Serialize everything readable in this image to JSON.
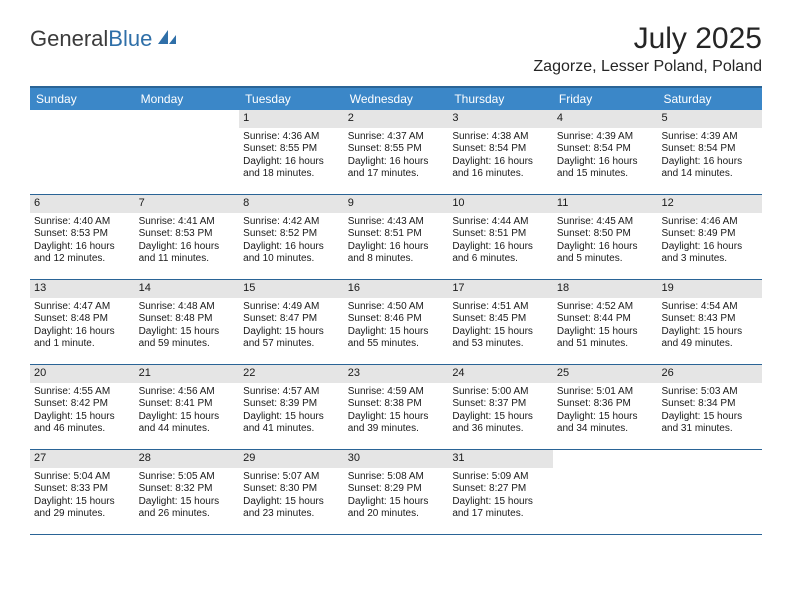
{
  "logo": {
    "text1": "General",
    "text2": "Blue"
  },
  "title": "July 2025",
  "location": "Zagorze, Lesser Poland, Poland",
  "colors": {
    "header_bar": "#3b87c8",
    "border": "#2a6496",
    "daynum_bg": "#e5e5e5",
    "text": "#1a1a1a",
    "logo_gray": "#3b3b3b",
    "logo_blue": "#2f6fa8",
    "background": "#ffffff"
  },
  "weekdays": [
    "Sunday",
    "Monday",
    "Tuesday",
    "Wednesday",
    "Thursday",
    "Friday",
    "Saturday"
  ],
  "font": {
    "family": "Arial",
    "body_size": 10,
    "weekday_size": 12,
    "title_size": 30,
    "location_size": 16
  },
  "weeks": [
    [
      null,
      null,
      {
        "n": "1",
        "sr": "Sunrise: 4:36 AM",
        "ss": "Sunset: 8:55 PM",
        "dl": "Daylight: 16 hours and 18 minutes."
      },
      {
        "n": "2",
        "sr": "Sunrise: 4:37 AM",
        "ss": "Sunset: 8:55 PM",
        "dl": "Daylight: 16 hours and 17 minutes."
      },
      {
        "n": "3",
        "sr": "Sunrise: 4:38 AM",
        "ss": "Sunset: 8:54 PM",
        "dl": "Daylight: 16 hours and 16 minutes."
      },
      {
        "n": "4",
        "sr": "Sunrise: 4:39 AM",
        "ss": "Sunset: 8:54 PM",
        "dl": "Daylight: 16 hours and 15 minutes."
      },
      {
        "n": "5",
        "sr": "Sunrise: 4:39 AM",
        "ss": "Sunset: 8:54 PM",
        "dl": "Daylight: 16 hours and 14 minutes."
      }
    ],
    [
      {
        "n": "6",
        "sr": "Sunrise: 4:40 AM",
        "ss": "Sunset: 8:53 PM",
        "dl": "Daylight: 16 hours and 12 minutes."
      },
      {
        "n": "7",
        "sr": "Sunrise: 4:41 AM",
        "ss": "Sunset: 8:53 PM",
        "dl": "Daylight: 16 hours and 11 minutes."
      },
      {
        "n": "8",
        "sr": "Sunrise: 4:42 AM",
        "ss": "Sunset: 8:52 PM",
        "dl": "Daylight: 16 hours and 10 minutes."
      },
      {
        "n": "9",
        "sr": "Sunrise: 4:43 AM",
        "ss": "Sunset: 8:51 PM",
        "dl": "Daylight: 16 hours and 8 minutes."
      },
      {
        "n": "10",
        "sr": "Sunrise: 4:44 AM",
        "ss": "Sunset: 8:51 PM",
        "dl": "Daylight: 16 hours and 6 minutes."
      },
      {
        "n": "11",
        "sr": "Sunrise: 4:45 AM",
        "ss": "Sunset: 8:50 PM",
        "dl": "Daylight: 16 hours and 5 minutes."
      },
      {
        "n": "12",
        "sr": "Sunrise: 4:46 AM",
        "ss": "Sunset: 8:49 PM",
        "dl": "Daylight: 16 hours and 3 minutes."
      }
    ],
    [
      {
        "n": "13",
        "sr": "Sunrise: 4:47 AM",
        "ss": "Sunset: 8:48 PM",
        "dl": "Daylight: 16 hours and 1 minute."
      },
      {
        "n": "14",
        "sr": "Sunrise: 4:48 AM",
        "ss": "Sunset: 8:48 PM",
        "dl": "Daylight: 15 hours and 59 minutes."
      },
      {
        "n": "15",
        "sr": "Sunrise: 4:49 AM",
        "ss": "Sunset: 8:47 PM",
        "dl": "Daylight: 15 hours and 57 minutes."
      },
      {
        "n": "16",
        "sr": "Sunrise: 4:50 AM",
        "ss": "Sunset: 8:46 PM",
        "dl": "Daylight: 15 hours and 55 minutes."
      },
      {
        "n": "17",
        "sr": "Sunrise: 4:51 AM",
        "ss": "Sunset: 8:45 PM",
        "dl": "Daylight: 15 hours and 53 minutes."
      },
      {
        "n": "18",
        "sr": "Sunrise: 4:52 AM",
        "ss": "Sunset: 8:44 PM",
        "dl": "Daylight: 15 hours and 51 minutes."
      },
      {
        "n": "19",
        "sr": "Sunrise: 4:54 AM",
        "ss": "Sunset: 8:43 PM",
        "dl": "Daylight: 15 hours and 49 minutes."
      }
    ],
    [
      {
        "n": "20",
        "sr": "Sunrise: 4:55 AM",
        "ss": "Sunset: 8:42 PM",
        "dl": "Daylight: 15 hours and 46 minutes."
      },
      {
        "n": "21",
        "sr": "Sunrise: 4:56 AM",
        "ss": "Sunset: 8:41 PM",
        "dl": "Daylight: 15 hours and 44 minutes."
      },
      {
        "n": "22",
        "sr": "Sunrise: 4:57 AM",
        "ss": "Sunset: 8:39 PM",
        "dl": "Daylight: 15 hours and 41 minutes."
      },
      {
        "n": "23",
        "sr": "Sunrise: 4:59 AM",
        "ss": "Sunset: 8:38 PM",
        "dl": "Daylight: 15 hours and 39 minutes."
      },
      {
        "n": "24",
        "sr": "Sunrise: 5:00 AM",
        "ss": "Sunset: 8:37 PM",
        "dl": "Daylight: 15 hours and 36 minutes."
      },
      {
        "n": "25",
        "sr": "Sunrise: 5:01 AM",
        "ss": "Sunset: 8:36 PM",
        "dl": "Daylight: 15 hours and 34 minutes."
      },
      {
        "n": "26",
        "sr": "Sunrise: 5:03 AM",
        "ss": "Sunset: 8:34 PM",
        "dl": "Daylight: 15 hours and 31 minutes."
      }
    ],
    [
      {
        "n": "27",
        "sr": "Sunrise: 5:04 AM",
        "ss": "Sunset: 8:33 PM",
        "dl": "Daylight: 15 hours and 29 minutes."
      },
      {
        "n": "28",
        "sr": "Sunrise: 5:05 AM",
        "ss": "Sunset: 8:32 PM",
        "dl": "Daylight: 15 hours and 26 minutes."
      },
      {
        "n": "29",
        "sr": "Sunrise: 5:07 AM",
        "ss": "Sunset: 8:30 PM",
        "dl": "Daylight: 15 hours and 23 minutes."
      },
      {
        "n": "30",
        "sr": "Sunrise: 5:08 AM",
        "ss": "Sunset: 8:29 PM",
        "dl": "Daylight: 15 hours and 20 minutes."
      },
      {
        "n": "31",
        "sr": "Sunrise: 5:09 AM",
        "ss": "Sunset: 8:27 PM",
        "dl": "Daylight: 15 hours and 17 minutes."
      },
      null,
      null
    ]
  ]
}
